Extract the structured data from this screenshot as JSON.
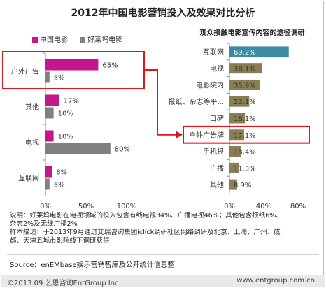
{
  "title": "2012年中国电影营销投入及效果对比分析",
  "colors": {
    "china": "#c4168f",
    "hollywood": "#808080",
    "channel_top": "#3d8aa5",
    "channel": "#8a7e55",
    "highlight": "#e0141a"
  },
  "chart_data": [
    {
      "type": "bar",
      "orientation": "horizontal",
      "categories": [
        "户外广告",
        "其他",
        "电视",
        "互联网"
      ],
      "series": [
        {
          "name": "中国电影",
          "values": [
            65,
            17,
            10,
            8
          ]
        },
        {
          "name": "好莱坞电影",
          "values": [
            5,
            10,
            80,
            5
          ]
        }
      ],
      "value_labels": [
        [
          "65%",
          "5%"
        ],
        [
          "17%",
          "10%"
        ],
        [
          "10%",
          "80%"
        ],
        [
          "8%",
          "5%"
        ]
      ],
      "xlim": [
        0,
        100
      ],
      "xticks": [
        "0%",
        "50%",
        "100%"
      ],
      "legend": "top-left",
      "highlighted_category": "户外广告"
    },
    {
      "type": "bar",
      "orientation": "horizontal",
      "title": "观众接触电影宣传内容的途径调研",
      "categories": [
        "互联网",
        "电视",
        "电影院内",
        "报纸、杂志等平...",
        "口碑",
        "户外广告牌",
        "手机报",
        "广播",
        "其他"
      ],
      "values": [
        69.2,
        38.1,
        35.9,
        23.1,
        18.1,
        17.1,
        13.4,
        11.3,
        8.9
      ],
      "value_labels": [
        "69.2%",
        "38.1%",
        "35.9%",
        "23.1%",
        "18.1%",
        "17.1%",
        "13.4%",
        "11.3%",
        "8.9%"
      ],
      "xlim": [
        0,
        80
      ],
      "xticks": [
        "0%",
        "40%",
        "80%"
      ],
      "highlighted_category": "户外广告牌"
    }
  ],
  "notes": {
    "line1": "说明：好莱坞电影在电视领域的投入包含有线电视34%、广播电视46%；其他包含报纸6%、",
    "line2": "杂志2%及无线广播2%",
    "line3": "样本描述：于2013年9月通过艾瑞咨询集团iclick调研社区网络调研及北京、上海、广州、成",
    "line4": "都、天津五城市影院线下调研获得"
  },
  "source": "Source：enEMbase娱乐营销智库及公开统计信息整",
  "footer": {
    "copyright": "©2013.09  艺恩咨询EntGroup Inc.",
    "site": "www.entgroup.com.cn"
  }
}
